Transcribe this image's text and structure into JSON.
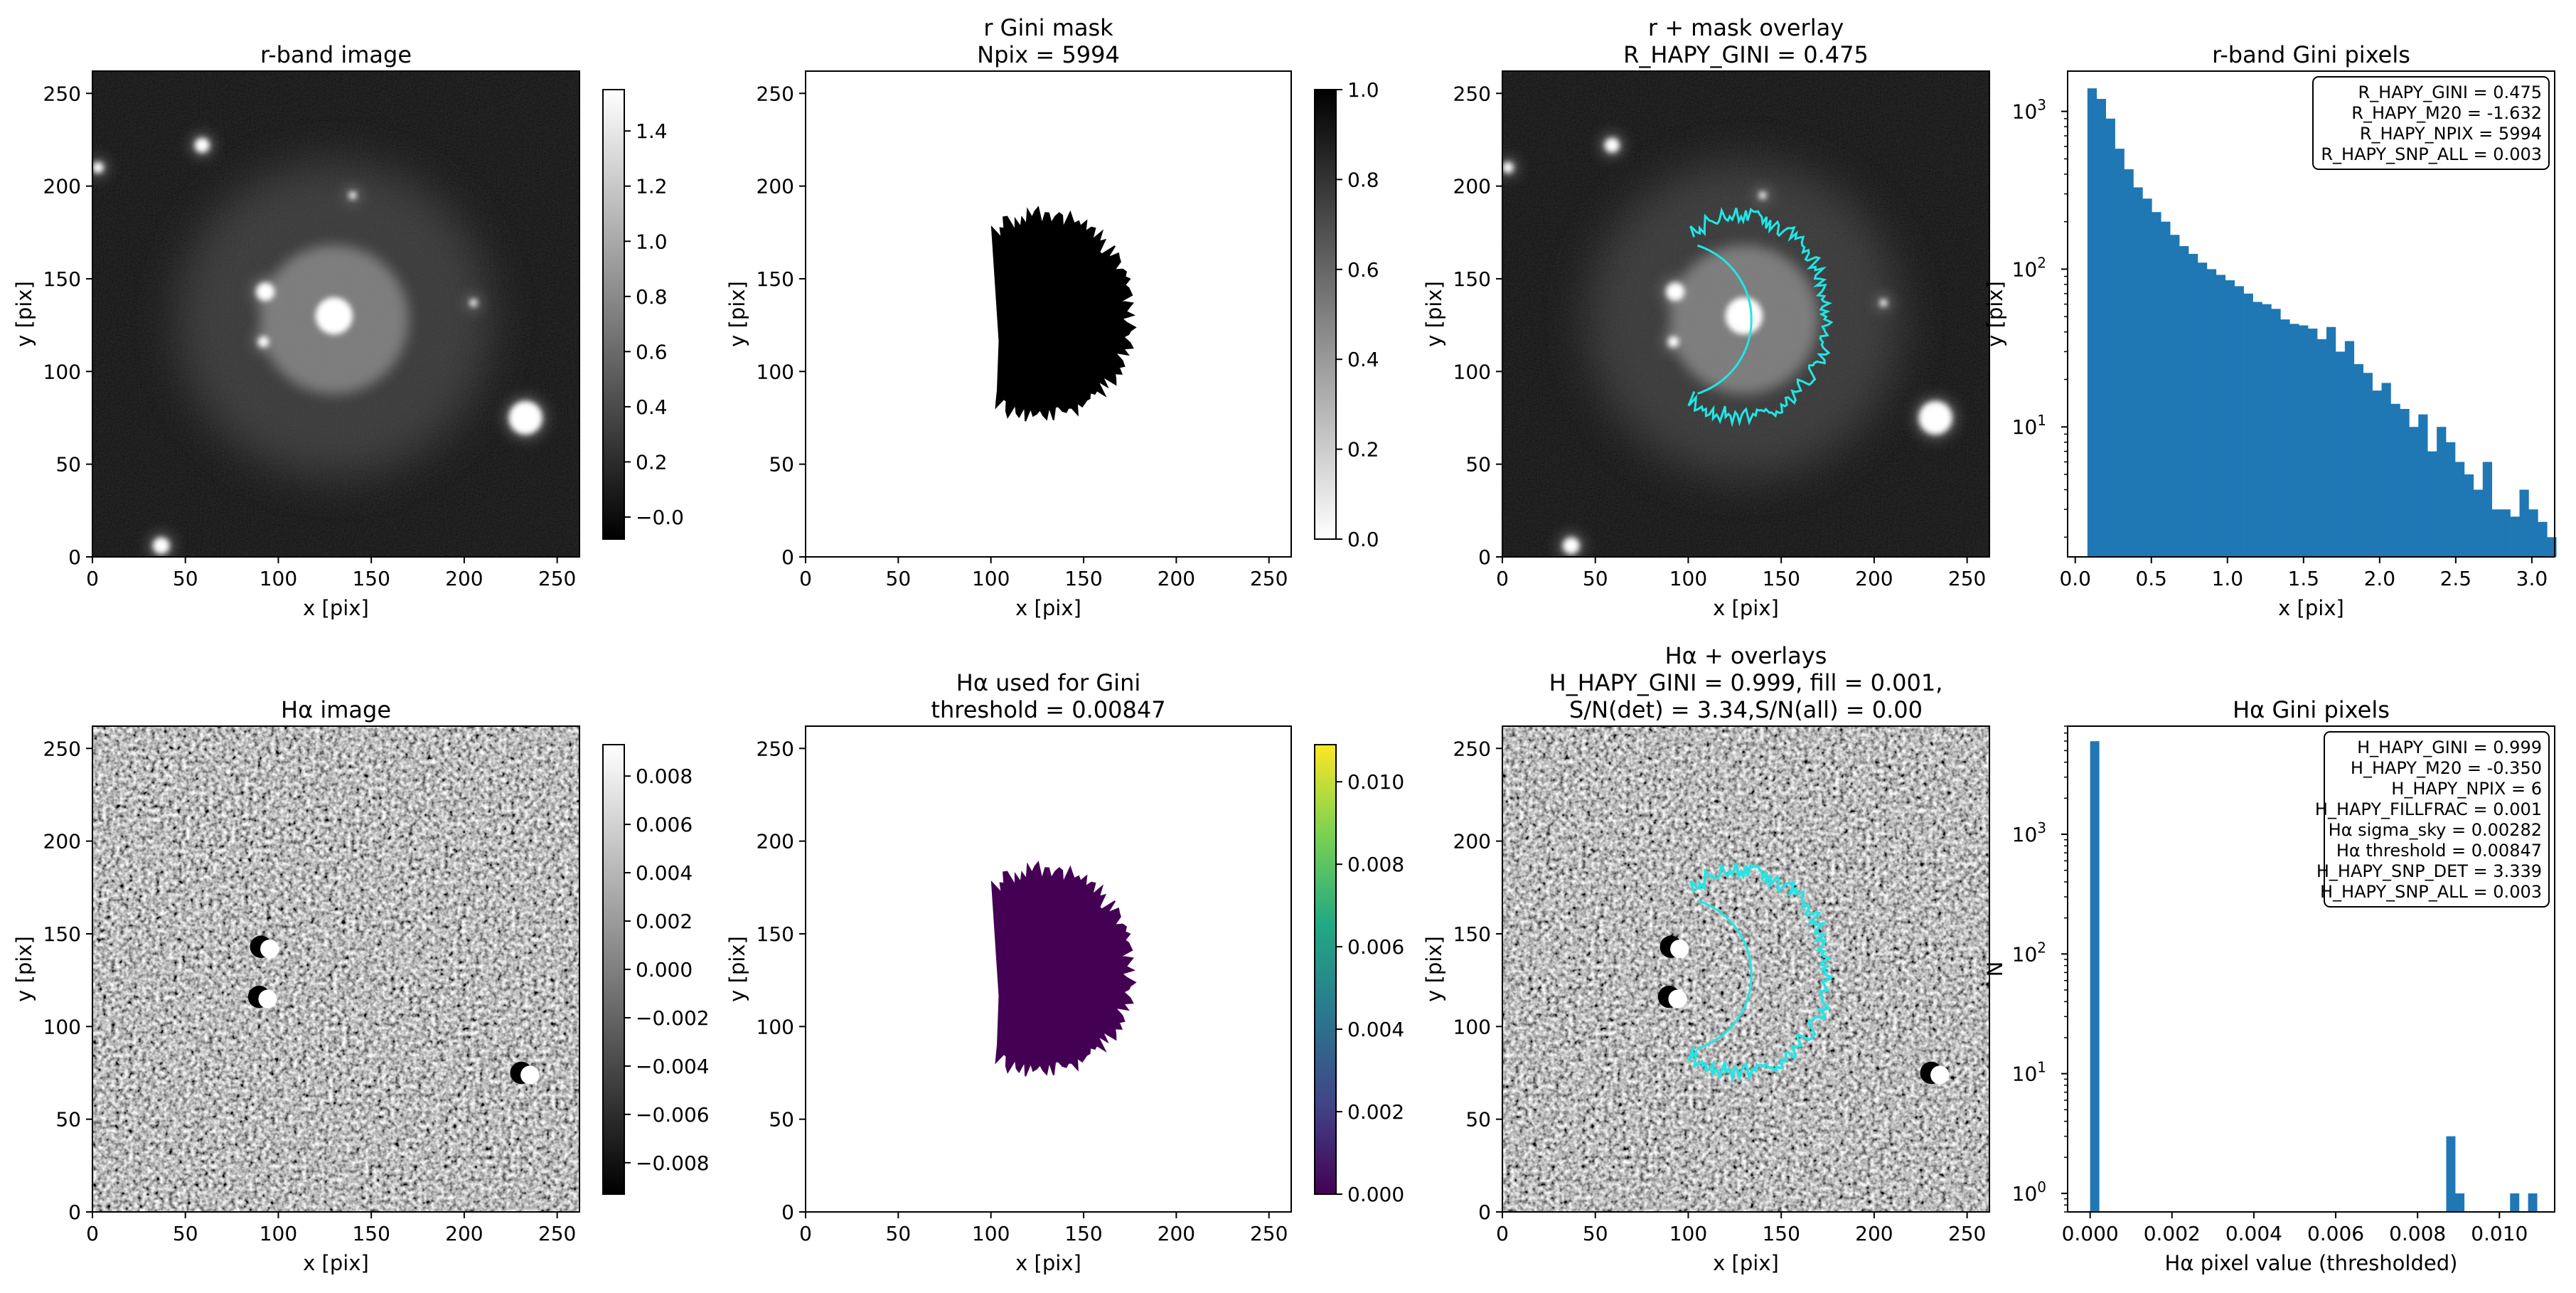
{
  "figure": {
    "title": "",
    "domain": "astronomy image panels"
  },
  "chart_data": [
    {
      "id": "p1",
      "type": "heatmap",
      "title": "r-band image",
      "xlabel": "x [pix]",
      "ylabel": "y [pix]",
      "xlim": [
        0,
        262
      ],
      "ylim": [
        0,
        262
      ],
      "xticks": [
        0,
        50,
        100,
        150,
        200,
        250
      ],
      "yticks": [
        0,
        50,
        100,
        150,
        200,
        250
      ],
      "image": "r-band",
      "colorbar": {
        "cmap": "gray",
        "range": [
          -0.08,
          1.55
        ],
        "ticks": [
          -0.0,
          0.2,
          0.4,
          0.6,
          0.8,
          1.0,
          1.2,
          1.4
        ],
        "labels": [
          "−0.0",
          "0.2",
          "0.4",
          "0.6",
          "0.8",
          "1.0",
          "1.2",
          "1.4"
        ]
      }
    },
    {
      "id": "p2",
      "type": "heatmap",
      "title": [
        "r Gini mask",
        "Npix = 5994"
      ],
      "xlabel": "x [pix]",
      "ylabel": "y [pix]",
      "xlim": [
        0,
        262
      ],
      "ylim": [
        0,
        262
      ],
      "xticks": [
        0,
        50,
        100,
        150,
        200,
        250
      ],
      "yticks": [
        0,
        50,
        100,
        150,
        200,
        250
      ],
      "image": "mask-black",
      "colorbar": {
        "cmap": "gray_r",
        "range": [
          0,
          1
        ],
        "ticks": [
          0.0,
          0.2,
          0.4,
          0.6,
          0.8,
          1.0
        ],
        "labels": [
          "0.0",
          "0.2",
          "0.4",
          "0.6",
          "0.8",
          "1.0"
        ]
      }
    },
    {
      "id": "p3",
      "type": "heatmap",
      "title": [
        "r + mask overlay",
        "R_HAPY_GINI = 0.475"
      ],
      "xlabel": "x [pix]",
      "ylabel": "y [pix]",
      "xlim": [
        0,
        262
      ],
      "ylim": [
        0,
        262
      ],
      "xticks": [
        0,
        50,
        100,
        150,
        200,
        250
      ],
      "yticks": [
        0,
        50,
        100,
        150,
        200,
        250
      ],
      "image": "r-band",
      "overlay": "cyan-contour"
    },
    {
      "id": "p4",
      "type": "bar",
      "title": "r-band Gini pixels",
      "xlabel": "x [pix]",
      "ylabel": "y [pix]",
      "yscale": "log",
      "xlim": [
        -0.05,
        3.15
      ],
      "ylim": [
        1.5,
        1800
      ],
      "xticks": [
        0.0,
        0.5,
        1.0,
        1.5,
        2.0,
        2.5,
        3.0
      ],
      "xticklabels": [
        "0.0",
        "0.5",
        "1.0",
        "1.5",
        "2.0",
        "2.5",
        "3.0"
      ],
      "bin_start": 0.08,
      "bin_width": 0.0604,
      "values": [
        1400,
        1200,
        900,
        580,
        430,
        330,
        280,
        230,
        200,
        165,
        140,
        125,
        110,
        100,
        92,
        85,
        78,
        70,
        62,
        60,
        56,
        48,
        45,
        44,
        42,
        36,
        43,
        30,
        35,
        25,
        22,
        17,
        19,
        14,
        13,
        10,
        12,
        7,
        10,
        8,
        6,
        5,
        4,
        6,
        3,
        3,
        2.7,
        4,
        3,
        2.5,
        2
      ],
      "legend": [
        "R_HAPY_GINI = 0.475",
        "R_HAPY_M20 = -1.632",
        "R_HAPY_NPIX = 5994",
        "R_HAPY_SNP_ALL = 0.003"
      ],
      "color": "#1f77b4"
    },
    {
      "id": "p5",
      "type": "heatmap",
      "title": "Hα image",
      "xlabel": "x [pix]",
      "ylabel": "y [pix]",
      "xlim": [
        0,
        262
      ],
      "ylim": [
        0,
        262
      ],
      "xticks": [
        0,
        50,
        100,
        150,
        200,
        250
      ],
      "yticks": [
        0,
        50,
        100,
        150,
        200,
        250
      ],
      "image": "halpha-noise",
      "colorbar": {
        "cmap": "gray",
        "range": [
          -0.0093,
          0.0093
        ],
        "ticks": [
          -0.008,
          -0.006,
          -0.004,
          -0.002,
          0.0,
          0.002,
          0.004,
          0.006,
          0.008
        ],
        "labels": [
          "−0.008",
          "−0.006",
          "−0.004",
          "−0.002",
          "0.000",
          "0.002",
          "0.004",
          "0.006",
          "0.008"
        ]
      }
    },
    {
      "id": "p6",
      "type": "heatmap",
      "title": [
        "Hα used for Gini",
        "threshold = 0.00847"
      ],
      "xlabel": "x [pix]",
      "ylabel": "y [pix]",
      "xlim": [
        0,
        262
      ],
      "ylim": [
        0,
        262
      ],
      "xticks": [
        0,
        50,
        100,
        150,
        200,
        250
      ],
      "yticks": [
        0,
        50,
        100,
        150,
        200,
        250
      ],
      "image": "mask-purple",
      "colorbar": {
        "cmap": "viridis",
        "range": [
          0,
          0.0109
        ],
        "ticks": [
          0.0,
          0.002,
          0.004,
          0.006,
          0.008,
          0.01
        ],
        "labels": [
          "0.000",
          "0.002",
          "0.004",
          "0.006",
          "0.008",
          "0.010"
        ]
      }
    },
    {
      "id": "p7",
      "type": "heatmap",
      "title": [
        "Hα + overlays",
        "H_HAPY_GINI = 0.999, fill = 0.001,",
        "S/N(det) = 3.34,S/N(all) = 0.00"
      ],
      "xlabel": "x [pix]",
      "ylabel": "y [pix]",
      "xlim": [
        0,
        262
      ],
      "ylim": [
        0,
        262
      ],
      "xticks": [
        0,
        50,
        100,
        150,
        200,
        250
      ],
      "yticks": [
        0,
        50,
        100,
        150,
        200,
        250
      ],
      "image": "halpha-noise",
      "overlay": "cyan-contour"
    },
    {
      "id": "p8",
      "type": "bar",
      "title": "Hα Gini pixels",
      "xlabel": "Hα pixel value (thresholded)",
      "ylabel": "N",
      "yscale": "log",
      "xlim": [
        -0.00055,
        0.01135
      ],
      "ylim": [
        0.7,
        8000
      ],
      "xticks": [
        0.0,
        0.002,
        0.004,
        0.006,
        0.008,
        0.01
      ],
      "xticklabels": [
        "0.000",
        "0.002",
        "0.004",
        "0.006",
        "0.008",
        "0.010"
      ],
      "bars": [
        {
          "x": 0.0,
          "w": 0.00022,
          "v": 5988
        },
        {
          "x": 0.0087,
          "w": 0.00022,
          "v": 3
        },
        {
          "x": 0.00892,
          "w": 0.00022,
          "v": 1
        },
        {
          "x": 0.01026,
          "w": 0.00022,
          "v": 1
        },
        {
          "x": 0.0107,
          "w": 0.00022,
          "v": 1
        }
      ],
      "legend": [
        "H_HAPY_GINI = 0.999",
        "H_HAPY_M20 = -0.350",
        "H_HAPY_NPIX = 6",
        "H_HAPY_FILLFRAC = 0.001",
        "Hα sigma_sky = 0.00282",
        "Hα threshold = 0.00847",
        "H_HAPY_SNP_DET = 3.339",
        "H_HAPY_SNP_ALL = 0.003"
      ],
      "color": "#1f77b4"
    }
  ]
}
